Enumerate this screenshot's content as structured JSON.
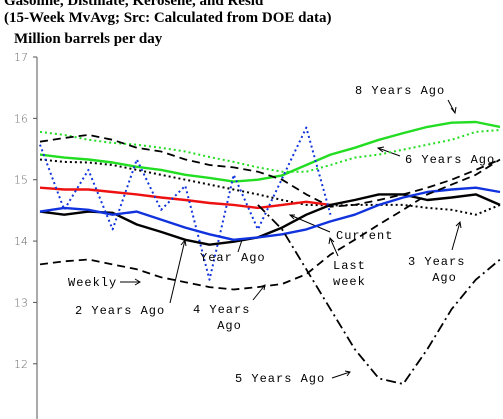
{
  "chart_data": {
    "type": "line",
    "title": "Gasoline, Distillate, Kerosene, and Resid",
    "subtitle": "(15-Week MvAvg; Src: Calculated from DOE data)",
    "ylabel": "Million barrels per day",
    "categories": [
      null,
      null,
      null,
      null,
      null,
      null,
      null,
      null,
      null,
      null,
      null,
      null,
      null,
      null,
      null,
      null,
      null,
      null,
      null,
      null
    ],
    "ylim": [
      11.1,
      17
    ],
    "yticks": [
      12,
      13,
      14,
      15,
      16,
      17
    ],
    "annotations": [
      "Last week"
    ],
    "series": [
      {
        "name": "8 Years Ago",
        "color": "#22dd22",
        "style": "solid",
        "values": [
          15.41,
          15.36,
          15.33,
          15.28,
          15.21,
          15.16,
          15.08,
          15.03,
          14.97,
          15.0,
          15.07,
          15.24,
          15.41,
          15.52,
          15.65,
          15.76,
          15.86,
          15.93,
          15.94,
          15.86
        ]
      },
      {
        "name": "6 Years Ago",
        "color": "#22dd22",
        "style": "dotted",
        "values": [
          15.78,
          15.73,
          15.65,
          15.6,
          15.57,
          15.52,
          15.46,
          15.37,
          15.29,
          15.2,
          15.13,
          15.13,
          15.24,
          15.36,
          15.41,
          15.49,
          15.57,
          15.65,
          15.78,
          15.81
        ]
      },
      {
        "color": "#000000",
        "style": "dashed",
        "values": [
          15.62,
          15.68,
          15.73,
          15.65,
          15.52,
          15.46,
          15.33,
          15.24,
          15.2,
          15.13,
          15.0,
          14.76,
          14.56,
          14.59,
          14.67,
          14.76,
          14.87,
          15.0,
          15.16,
          15.33
        ]
      },
      {
        "name": "3 Years Ago",
        "color": "#000000",
        "style": "dotted",
        "values": [
          15.33,
          15.29,
          15.28,
          15.24,
          15.16,
          15.08,
          15.0,
          14.92,
          14.84,
          14.76,
          14.67,
          14.59,
          14.58,
          14.59,
          14.59,
          14.59,
          14.54,
          14.51,
          14.43,
          14.59
        ]
      },
      {
        "name": "Current",
        "color": "#ee1111",
        "style": "solid",
        "values": [
          14.87,
          14.84,
          14.84,
          14.8,
          14.76,
          14.71,
          14.67,
          14.62,
          14.59,
          14.54,
          14.59,
          14.64,
          14.59,
          null,
          null,
          null,
          null,
          null,
          null,
          null
        ]
      },
      {
        "name": "Year Ago",
        "color": "#000000",
        "style": "solid",
        "values": [
          14.48,
          14.43,
          14.48,
          14.46,
          14.27,
          14.15,
          14.02,
          13.94,
          13.99,
          14.06,
          14.22,
          14.43,
          14.59,
          14.67,
          14.76,
          14.76,
          14.67,
          14.71,
          14.76,
          14.59
        ]
      },
      {
        "name": "2 Years Ago",
        "color": "#1133dd",
        "style": "solid",
        "values": [
          14.48,
          14.54,
          14.51,
          14.43,
          14.48,
          14.35,
          14.22,
          14.11,
          14.02,
          14.06,
          14.11,
          14.19,
          14.32,
          14.43,
          14.59,
          14.71,
          14.8,
          14.84,
          14.87,
          14.8
        ]
      },
      {
        "name": "Weekly",
        "color": "#1133dd",
        "style": "dotted",
        "values": [
          15.57,
          14.51,
          15.16,
          14.19,
          15.33,
          14.51,
          14.9,
          13.37,
          15.08,
          14.19,
          15.02,
          15.85,
          14.43,
          null,
          null,
          null,
          null,
          null,
          null,
          null
        ]
      },
      {
        "name": "4 Years Ago",
        "color": "#000000",
        "style": "dashed",
        "values": [
          13.62,
          13.67,
          13.7,
          13.62,
          13.54,
          13.41,
          13.33,
          13.25,
          13.21,
          13.25,
          13.3,
          13.46,
          13.78,
          14.02,
          14.27,
          14.51,
          14.76,
          14.92,
          15.08,
          15.33
        ]
      },
      {
        "name": "5 Years Ago",
        "color": "#000000",
        "style": "dashdot",
        "values": [
          null,
          null,
          null,
          null,
          null,
          null,
          null,
          null,
          null,
          14.59,
          14.19,
          13.54,
          12.89,
          12.24,
          11.76,
          11.67,
          12.24,
          12.89,
          13.37,
          13.7
        ]
      }
    ]
  }
}
